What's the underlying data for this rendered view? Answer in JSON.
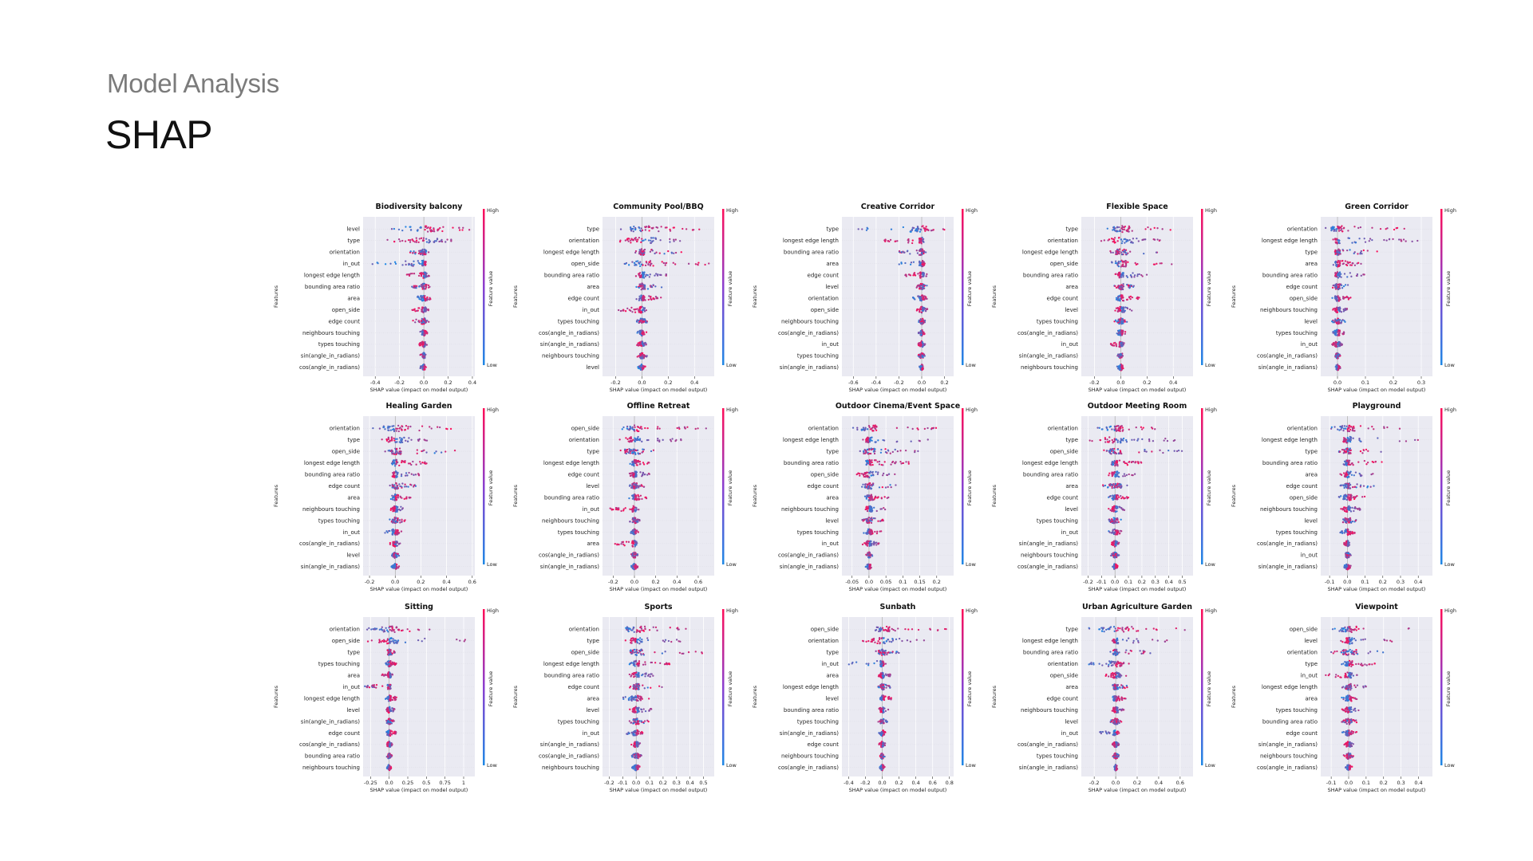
{
  "page": {
    "subtitle": "Model Analysis",
    "title": "SHAP"
  },
  "common": {
    "xlabel": "SHAP value (impact on model output)",
    "ylabel": "Features",
    "colorbar_label": "Feature value",
    "colorbar_high": "High",
    "colorbar_low": "Low",
    "color_low": "#1e88e5",
    "color_high": "#ff0d57",
    "grid_bg": "#eaeaf2"
  },
  "chart_data": [
    {
      "type": "scatter",
      "title": "Biodiversity balcony",
      "ticks": [
        -0.4,
        -0.2,
        0.0,
        0.2,
        0.4
      ],
      "xlim": [
        -0.5,
        0.42
      ],
      "features": [
        "level",
        "type",
        "orientation",
        "in_out",
        "longest edge length",
        "bounding area ratio",
        "area",
        "open_side",
        "edge count",
        "neighbours touching",
        "types touching",
        "sin(angle_in_radians)",
        "cos(angle_in_radians)"
      ],
      "spread": [
        [
          -0.35,
          0.38
        ],
        [
          -0.3,
          0.25
        ],
        [
          -0.12,
          0.05
        ],
        [
          -0.45,
          0.04
        ],
        [
          -0.15,
          0.05
        ],
        [
          -0.1,
          0.05
        ],
        [
          -0.08,
          0.06
        ],
        [
          -0.1,
          0.04
        ],
        [
          -0.1,
          0.05
        ],
        [
          -0.04,
          0.03
        ],
        [
          -0.04,
          0.03
        ],
        [
          -0.03,
          0.02
        ],
        [
          -0.03,
          0.02
        ]
      ]
    },
    {
      "type": "scatter",
      "title": "Community Pool/BBQ",
      "ticks": [
        -0.2,
        0.0,
        0.2,
        0.4
      ],
      "xlim": [
        -0.3,
        0.55
      ],
      "features": [
        "type",
        "orientation",
        "longest edge length",
        "open_side",
        "bounding area ratio",
        "area",
        "edge count",
        "in_out",
        "types touching",
        "cos(angle_in_radians)",
        "sin(angle_in_radians)",
        "neighbours touching",
        "level"
      ],
      "spread": [
        [
          -0.2,
          0.45
        ],
        [
          -0.25,
          0.35
        ],
        [
          -0.05,
          0.3
        ],
        [
          -0.15,
          0.55
        ],
        [
          -0.05,
          0.2
        ],
        [
          -0.05,
          0.15
        ],
        [
          -0.05,
          0.15
        ],
        [
          -0.2,
          0.05
        ],
        [
          -0.05,
          0.05
        ],
        [
          -0.04,
          0.04
        ],
        [
          -0.04,
          0.04
        ],
        [
          -0.04,
          0.04
        ],
        [
          -0.03,
          0.03
        ]
      ]
    },
    {
      "type": "scatter",
      "title": "Creative Corridor",
      "ticks": [
        -0.6,
        -0.4,
        -0.2,
        0.0,
        0.2
      ],
      "xlim": [
        -0.7,
        0.28
      ],
      "features": [
        "type",
        "longest edge length",
        "bounding area ratio",
        "area",
        "edge count",
        "level",
        "orientation",
        "open_side",
        "neighbours touching",
        "cos(angle_in_radians)",
        "in_out",
        "types touching",
        "sin(angle_in_radians)"
      ],
      "spread": [
        [
          -0.65,
          0.25
        ],
        [
          -0.35,
          0.05
        ],
        [
          -0.2,
          0.05
        ],
        [
          -0.2,
          0.05
        ],
        [
          -0.15,
          0.05
        ],
        [
          -0.05,
          0.05
        ],
        [
          -0.08,
          0.05
        ],
        [
          -0.05,
          0.05
        ],
        [
          -0.03,
          0.03
        ],
        [
          -0.03,
          0.03
        ],
        [
          -0.03,
          0.03
        ],
        [
          -0.03,
          0.03
        ],
        [
          -0.02,
          0.02
        ]
      ]
    },
    {
      "type": "scatter",
      "title": "Flexible Space",
      "ticks": [
        -0.2,
        0.0,
        0.2,
        0.4
      ],
      "xlim": [
        -0.3,
        0.55
      ],
      "features": [
        "type",
        "orientation",
        "longest edge length",
        "open_side",
        "bounding area ratio",
        "area",
        "edge count",
        "level",
        "types touching",
        "cos(angle_in_radians)",
        "in_out",
        "sin(angle_in_radians)",
        "neighbours touching"
      ],
      "spread": [
        [
          -0.15,
          0.45
        ],
        [
          -0.2,
          0.3
        ],
        [
          -0.1,
          0.3
        ],
        [
          -0.1,
          0.4
        ],
        [
          -0.05,
          0.2
        ],
        [
          -0.05,
          0.1
        ],
        [
          -0.05,
          0.15
        ],
        [
          -0.05,
          0.1
        ],
        [
          -0.05,
          0.05
        ],
        [
          -0.04,
          0.04
        ],
        [
          -0.08,
          0.03
        ],
        [
          -0.03,
          0.03
        ],
        [
          -0.03,
          0.03
        ]
      ]
    },
    {
      "type": "scatter",
      "title": "Green Corridor",
      "ticks": [
        0.0,
        0.1,
        0.2,
        0.3
      ],
      "xlim": [
        -0.06,
        0.34
      ],
      "features": [
        "orientation",
        "longest edge length",
        "type",
        "area",
        "bounding area ratio",
        "edge count",
        "open_side",
        "neighbours touching",
        "level",
        "types touching",
        "in_out",
        "cos(angle_in_radians)",
        "sin(angle_in_radians)"
      ],
      "spread": [
        [
          -0.05,
          0.25
        ],
        [
          -0.02,
          0.3
        ],
        [
          -0.02,
          0.15
        ],
        [
          -0.02,
          0.1
        ],
        [
          -0.02,
          0.1
        ],
        [
          -0.02,
          0.06
        ],
        [
          -0.02,
          0.05
        ],
        [
          -0.02,
          0.04
        ],
        [
          -0.02,
          0.03
        ],
        [
          -0.02,
          0.03
        ],
        [
          -0.02,
          0.02
        ],
        [
          -0.01,
          0.01
        ],
        [
          -0.01,
          0.01
        ]
      ]
    },
    {
      "type": "scatter",
      "title": "Healing Garden",
      "ticks": [
        -0.2,
        0.0,
        0.2,
        0.4,
        0.6
      ],
      "xlim": [
        -0.25,
        0.62
      ],
      "features": [
        "orientation",
        "type",
        "open_side",
        "longest edge length",
        "bounding area ratio",
        "edge count",
        "area",
        "neighbours touching",
        "types touching",
        "in_out",
        "cos(angle_in_radians)",
        "level",
        "sin(angle_in_radians)"
      ],
      "spread": [
        [
          -0.2,
          0.45
        ],
        [
          -0.15,
          0.25
        ],
        [
          -0.1,
          0.6
        ],
        [
          -0.05,
          0.25
        ],
        [
          -0.05,
          0.2
        ],
        [
          -0.05,
          0.18
        ],
        [
          -0.05,
          0.12
        ],
        [
          -0.05,
          0.1
        ],
        [
          -0.05,
          0.08
        ],
        [
          -0.08,
          0.05
        ],
        [
          -0.04,
          0.04
        ],
        [
          -0.03,
          0.03
        ],
        [
          -0.03,
          0.03
        ]
      ]
    },
    {
      "type": "scatter",
      "title": "Offline Retreat",
      "ticks": [
        -0.2,
        0.0,
        0.2,
        0.4,
        0.6
      ],
      "xlim": [
        -0.3,
        0.75
      ],
      "features": [
        "open_side",
        "orientation",
        "type",
        "longest edge length",
        "edge count",
        "level",
        "bounding area ratio",
        "in_out",
        "neighbours touching",
        "types touching",
        "area",
        "cos(angle_in_radians)",
        "sin(angle_in_radians)"
      ],
      "spread": [
        [
          -0.15,
          0.7
        ],
        [
          -0.15,
          0.45
        ],
        [
          -0.25,
          0.2
        ],
        [
          -0.05,
          0.15
        ],
        [
          -0.05,
          0.15
        ],
        [
          -0.05,
          0.1
        ],
        [
          -0.05,
          0.12
        ],
        [
          -0.25,
          0.05
        ],
        [
          -0.05,
          0.05
        ],
        [
          -0.04,
          0.04
        ],
        [
          -0.2,
          0.05
        ],
        [
          -0.03,
          0.03
        ],
        [
          -0.03,
          0.03
        ]
      ]
    },
    {
      "type": "scatter",
      "title": "Outdoor Cinema/Event Space",
      "ticks": [
        -0.05,
        0.0,
        0.05,
        0.1,
        0.15,
        0.2
      ],
      "xlim": [
        -0.08,
        0.25
      ],
      "features": [
        "orientation",
        "longest edge length",
        "type",
        "bounding area ratio",
        "open_side",
        "edge count",
        "area",
        "neighbours touching",
        "level",
        "types touching",
        "in_out",
        "cos(angle_in_radians)",
        "sin(angle_in_radians)"
      ],
      "spread": [
        [
          -0.05,
          0.22
        ],
        [
          -0.02,
          0.2
        ],
        [
          -0.04,
          0.15
        ],
        [
          -0.02,
          0.12
        ],
        [
          -0.04,
          0.08
        ],
        [
          -0.03,
          0.08
        ],
        [
          -0.02,
          0.06
        ],
        [
          -0.02,
          0.05
        ],
        [
          -0.02,
          0.05
        ],
        [
          -0.02,
          0.04
        ],
        [
          -0.02,
          0.03
        ],
        [
          -0.01,
          0.01
        ],
        [
          -0.01,
          0.01
        ]
      ]
    },
    {
      "type": "scatter",
      "title": "Outdoor Meeting Room",
      "ticks": [
        -0.2,
        -0.1,
        0.0,
        0.1,
        0.2,
        0.3,
        0.4,
        0.5
      ],
      "xlim": [
        -0.25,
        0.58
      ],
      "features": [
        "orientation",
        "type",
        "open_side",
        "longest edge length",
        "bounding area ratio",
        "area",
        "edge count",
        "level",
        "types touching",
        "in_out",
        "sin(angle_in_radians)",
        "neighbours touching",
        "cos(angle_in_radians)"
      ],
      "spread": [
        [
          -0.15,
          0.35
        ],
        [
          -0.2,
          0.5
        ],
        [
          -0.1,
          0.5
        ],
        [
          -0.05,
          0.2
        ],
        [
          -0.05,
          0.15
        ],
        [
          -0.1,
          0.1
        ],
        [
          -0.05,
          0.1
        ],
        [
          -0.05,
          0.08
        ],
        [
          -0.05,
          0.05
        ],
        [
          -0.05,
          0.05
        ],
        [
          -0.03,
          0.03
        ],
        [
          -0.03,
          0.03
        ],
        [
          -0.02,
          0.02
        ]
      ]
    },
    {
      "type": "scatter",
      "title": "Playground",
      "ticks": [
        -0.1,
        0.0,
        0.1,
        0.2,
        0.3,
        0.4
      ],
      "xlim": [
        -0.15,
        0.48
      ],
      "features": [
        "orientation",
        "longest edge length",
        "type",
        "bounding area ratio",
        "area",
        "edge count",
        "open_side",
        "neighbours touching",
        "level",
        "types touching",
        "cos(angle_in_radians)",
        "in_out",
        "sin(angle_in_radians)"
      ],
      "spread": [
        [
          -0.1,
          0.3
        ],
        [
          -0.05,
          0.45
        ],
        [
          -0.05,
          0.2
        ],
        [
          -0.04,
          0.2
        ],
        [
          -0.04,
          0.15
        ],
        [
          -0.04,
          0.15
        ],
        [
          -0.05,
          0.1
        ],
        [
          -0.04,
          0.08
        ],
        [
          -0.04,
          0.06
        ],
        [
          -0.04,
          0.05
        ],
        [
          -0.02,
          0.02
        ],
        [
          -0.02,
          0.02
        ],
        [
          -0.02,
          0.02
        ]
      ]
    },
    {
      "type": "scatter",
      "title": "Sitting",
      "ticks": [
        -0.25,
        0.0,
        0.25,
        0.5,
        0.75,
        1.0
      ],
      "xlim": [
        -0.35,
        1.15
      ],
      "features": [
        "orientation",
        "open_side",
        "type",
        "types touching",
        "area",
        "in_out",
        "longest edge length",
        "level",
        "sin(angle_in_radians)",
        "edge count",
        "cos(angle_in_radians)",
        "bounding area ratio",
        "neighbours touching"
      ],
      "spread": [
        [
          -0.3,
          0.6
        ],
        [
          -0.3,
          1.1
        ],
        [
          -0.05,
          0.1
        ],
        [
          -0.05,
          0.1
        ],
        [
          -0.1,
          0.05
        ],
        [
          -0.35,
          0.05
        ],
        [
          -0.05,
          0.12
        ],
        [
          -0.05,
          0.08
        ],
        [
          -0.05,
          0.08
        ],
        [
          -0.05,
          0.1
        ],
        [
          -0.04,
          0.04
        ],
        [
          -0.04,
          0.04
        ],
        [
          -0.03,
          0.03
        ]
      ]
    },
    {
      "type": "scatter",
      "title": "Sports",
      "ticks": [
        -0.2,
        -0.1,
        0.0,
        0.1,
        0.2,
        0.3,
        0.4,
        0.5
      ],
      "xlim": [
        -0.25,
        0.58
      ],
      "features": [
        "orientation",
        "type",
        "open_side",
        "longest edge length",
        "bounding area ratio",
        "edge count",
        "area",
        "level",
        "types touching",
        "in_out",
        "sin(angle_in_radians)",
        "cos(angle_in_radians)",
        "neighbours touching"
      ],
      "spread": [
        [
          -0.15,
          0.4
        ],
        [
          -0.1,
          0.35
        ],
        [
          -0.1,
          0.55
        ],
        [
          -0.05,
          0.25
        ],
        [
          -0.05,
          0.15
        ],
        [
          -0.05,
          0.2
        ],
        [
          -0.1,
          0.1
        ],
        [
          -0.05,
          0.12
        ],
        [
          -0.05,
          0.1
        ],
        [
          -0.08,
          0.05
        ],
        [
          -0.04,
          0.04
        ],
        [
          -0.04,
          0.04
        ],
        [
          -0.03,
          0.03
        ]
      ]
    },
    {
      "type": "scatter",
      "title": "Sunbath",
      "ticks": [
        -0.4,
        -0.2,
        0.0,
        0.2,
        0.4,
        0.6,
        0.8
      ],
      "xlim": [
        -0.48,
        0.85
      ],
      "features": [
        "open_side",
        "orientation",
        "type",
        "in_out",
        "area",
        "longest edge length",
        "level",
        "bounding area ratio",
        "types touching",
        "sin(angle_in_radians)",
        "edge count",
        "neighbours touching",
        "cos(angle_in_radians)"
      ],
      "spread": [
        [
          -0.2,
          0.8
        ],
        [
          -0.3,
          0.5
        ],
        [
          -0.1,
          0.2
        ],
        [
          -0.45,
          0.05
        ],
        [
          -0.05,
          0.1
        ],
        [
          -0.05,
          0.1
        ],
        [
          -0.05,
          0.12
        ],
        [
          -0.05,
          0.08
        ],
        [
          -0.05,
          0.06
        ],
        [
          -0.04,
          0.04
        ],
        [
          -0.04,
          0.04
        ],
        [
          -0.03,
          0.03
        ],
        [
          -0.03,
          0.03
        ]
      ]
    },
    {
      "type": "scatter",
      "title": "Urban Agriculture Garden",
      "ticks": [
        -0.2,
        0.0,
        0.2,
        0.4,
        0.6
      ],
      "xlim": [
        -0.32,
        0.72
      ],
      "features": [
        "type",
        "longest edge length",
        "bounding area ratio",
        "orientation",
        "open_side",
        "area",
        "edge count",
        "neighbours touching",
        "level",
        "in_out",
        "cos(angle_in_radians)",
        "types touching",
        "sin(angle_in_radians)"
      ],
      "spread": [
        [
          -0.3,
          0.65
        ],
        [
          -0.05,
          0.5
        ],
        [
          -0.05,
          0.35
        ],
        [
          -0.25,
          0.15
        ],
        [
          -0.1,
          0.1
        ],
        [
          -0.05,
          0.12
        ],
        [
          -0.05,
          0.1
        ],
        [
          -0.05,
          0.08
        ],
        [
          -0.05,
          0.06
        ],
        [
          -0.15,
          0.04
        ],
        [
          -0.03,
          0.03
        ],
        [
          -0.03,
          0.03
        ],
        [
          -0.02,
          0.02
        ]
      ]
    },
    {
      "type": "scatter",
      "title": "Viewpoint",
      "ticks": [
        -0.1,
        0.0,
        0.1,
        0.2,
        0.3,
        0.4
      ],
      "xlim": [
        -0.16,
        0.48
      ],
      "features": [
        "open_side",
        "level",
        "orientation",
        "type",
        "in_out",
        "longest edge length",
        "area",
        "types touching",
        "bounding area ratio",
        "edge count",
        "sin(angle_in_radians)",
        "neighbours touching",
        "cos(angle_in_radians)"
      ],
      "spread": [
        [
          -0.1,
          0.45
        ],
        [
          -0.05,
          0.25
        ],
        [
          -0.1,
          0.2
        ],
        [
          -0.05,
          0.15
        ],
        [
          -0.15,
          0.05
        ],
        [
          -0.04,
          0.12
        ],
        [
          -0.04,
          0.08
        ],
        [
          -0.04,
          0.06
        ],
        [
          -0.04,
          0.05
        ],
        [
          -0.04,
          0.05
        ],
        [
          -0.03,
          0.03
        ],
        [
          -0.03,
          0.03
        ],
        [
          -0.02,
          0.02
        ]
      ]
    }
  ]
}
